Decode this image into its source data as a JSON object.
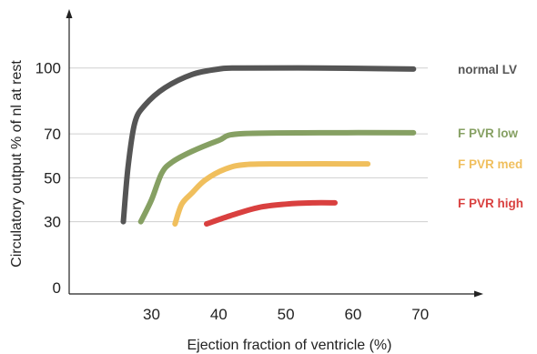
{
  "chart_data": {
    "type": "line",
    "xlabel": "Ejection fraction of ventricle (%)",
    "ylabel": "Circulatory  output  % of nl at rest",
    "xlim": [
      20,
      80
    ],
    "ylim": [
      0,
      130
    ],
    "xticks": [
      30,
      40,
      50,
      60,
      70
    ],
    "yticks": [
      0,
      30,
      50,
      70,
      100
    ],
    "grid": "horizontal",
    "series": [
      {
        "name": "normal LV",
        "color": "#555555",
        "points": [
          [
            25.8,
            30
          ],
          [
            26.5,
            55
          ],
          [
            27.5,
            75
          ],
          [
            29,
            83
          ],
          [
            32,
            91
          ],
          [
            36,
            97
          ],
          [
            40,
            99.5
          ],
          [
            43,
            100
          ],
          [
            55,
            100
          ],
          [
            69,
            99.5
          ]
        ]
      },
      {
        "name": "F PVR low",
        "color": "#86a063",
        "points": [
          [
            28.4,
            30
          ],
          [
            30,
            40
          ],
          [
            31.5,
            52
          ],
          [
            33,
            57
          ],
          [
            36,
            62
          ],
          [
            40,
            67
          ],
          [
            43,
            70
          ],
          [
            55,
            70.5
          ],
          [
            69,
            70.5
          ]
        ]
      },
      {
        "name": "F PVR med",
        "color": "#f0bf5d",
        "points": [
          [
            33.5,
            29
          ],
          [
            34.5,
            38
          ],
          [
            36,
            43
          ],
          [
            38,
            49
          ],
          [
            41,
            54
          ],
          [
            44,
            56
          ],
          [
            50,
            56.3
          ],
          [
            62.2,
            56.3
          ]
        ]
      },
      {
        "name": "F PVR high",
        "color": "#d9403f",
        "points": [
          [
            38.2,
            29
          ],
          [
            42,
            33
          ],
          [
            46,
            36.5
          ],
          [
            50,
            38
          ],
          [
            54,
            38.6
          ],
          [
            57.3,
            38.6
          ]
        ]
      }
    ]
  }
}
